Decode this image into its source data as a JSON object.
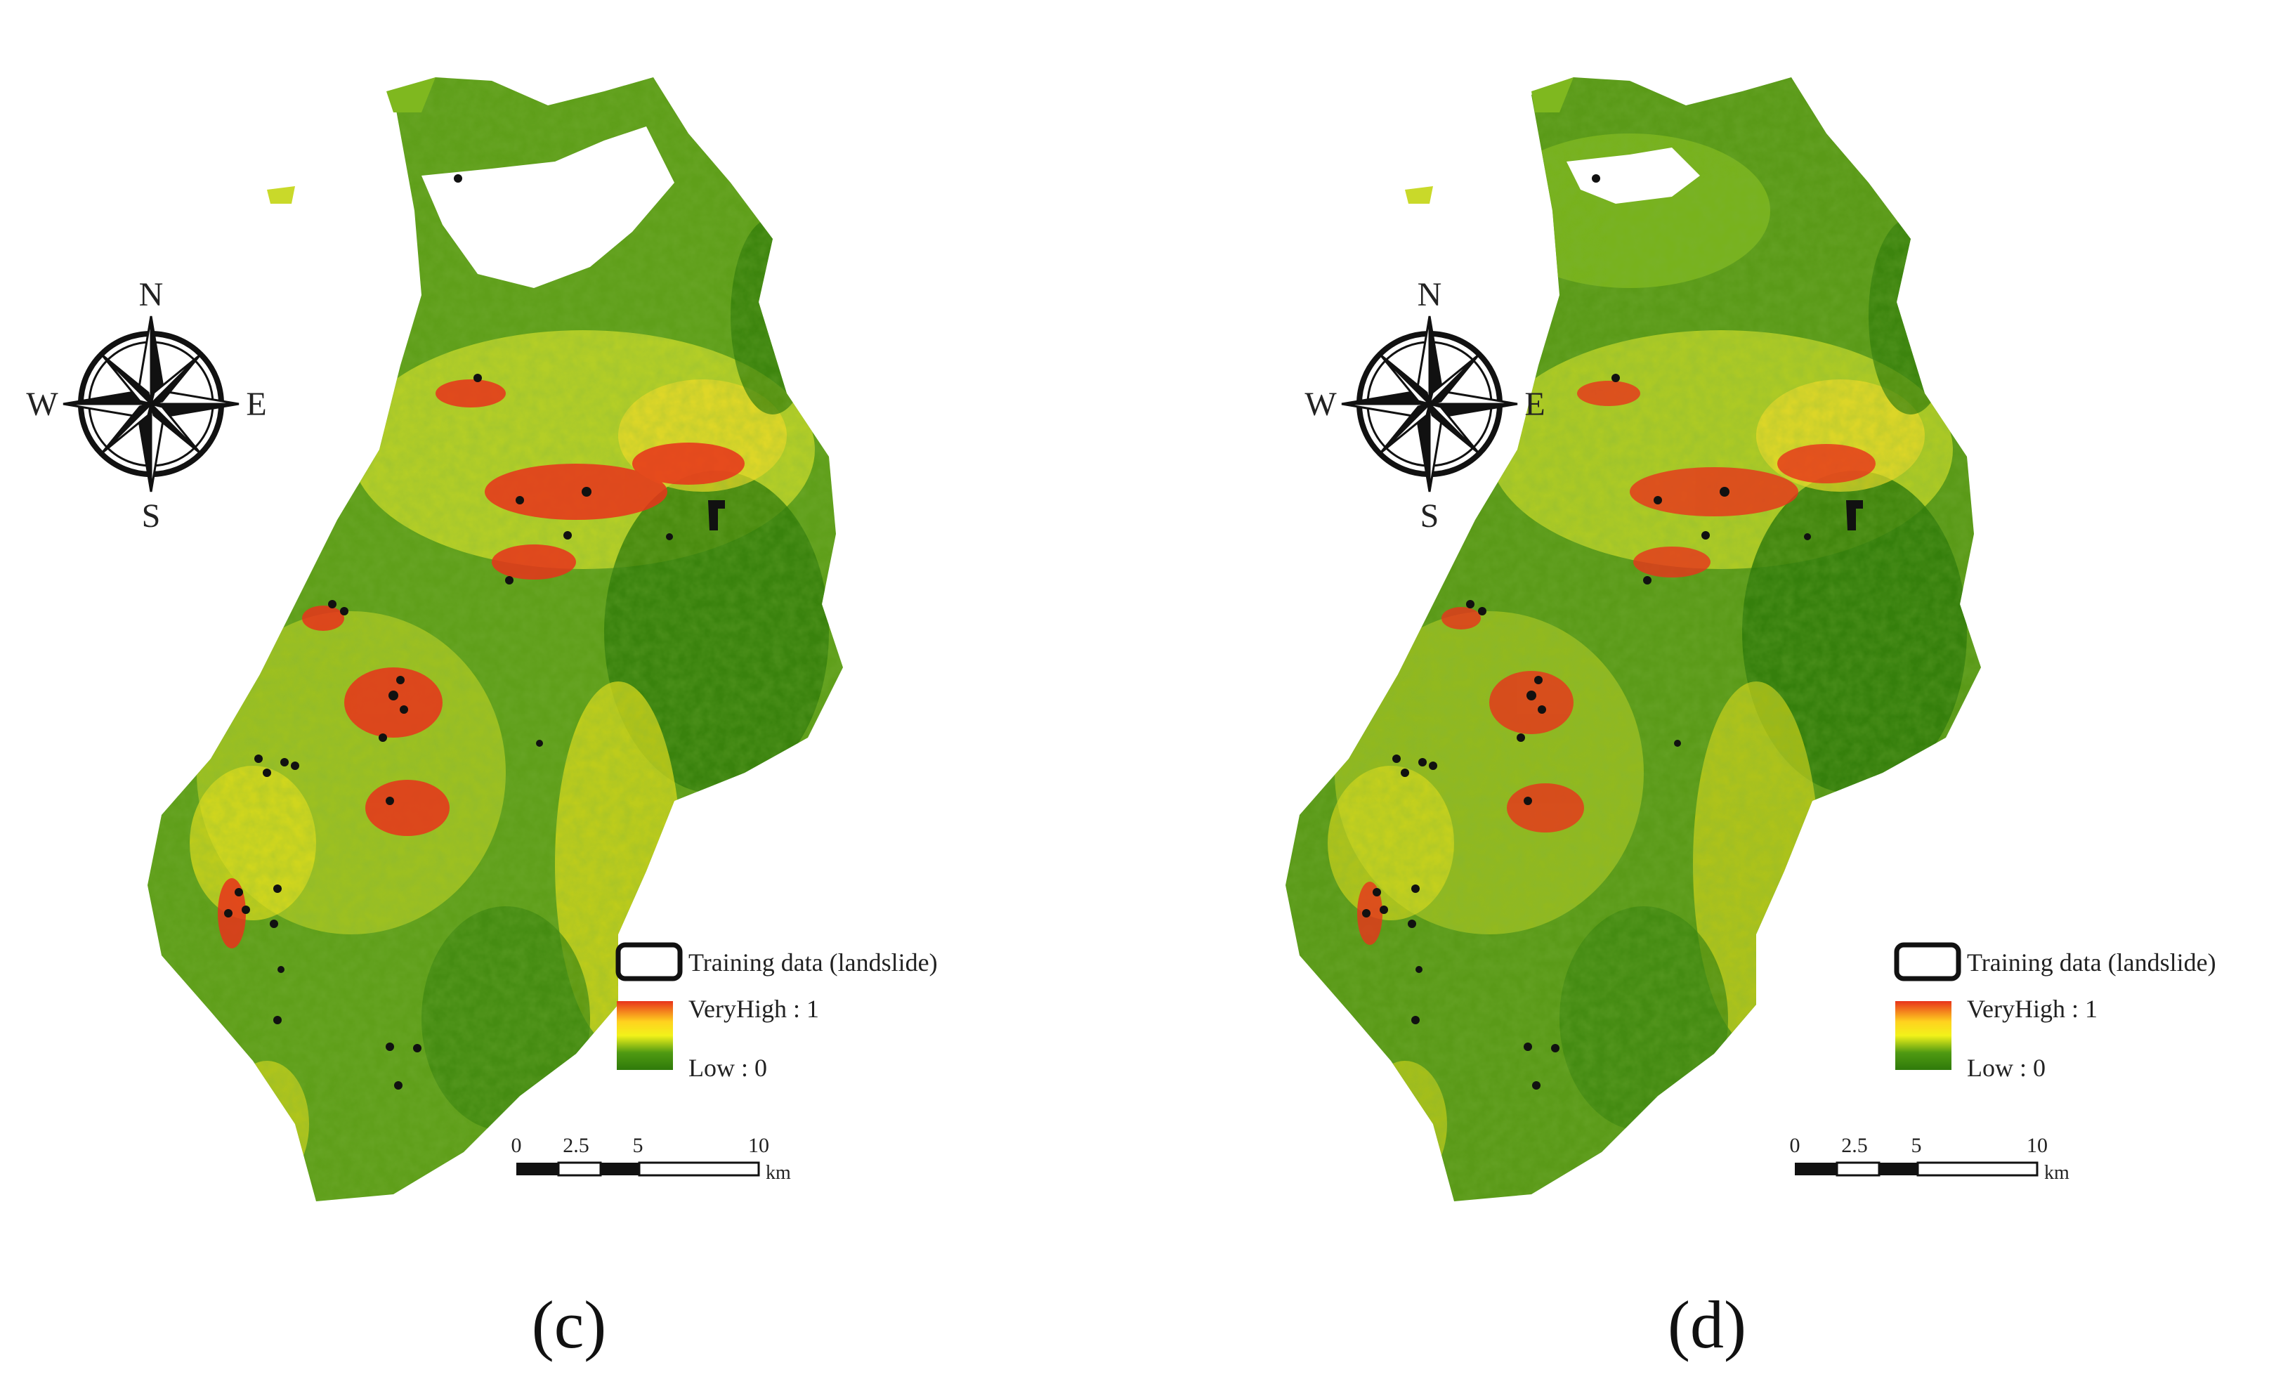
{
  "panels": [
    {
      "id": "c",
      "caption": "(c)",
      "compass": {
        "north": "N",
        "south": "S",
        "east": "E",
        "west": "W"
      },
      "legend": {
        "training_label": "Training data (landslide)",
        "high_label": "VeryHigh : 1",
        "low_label": "Low : 0",
        "ramp_colors": [
          "#e8331b",
          "#ffd21f",
          "#f2f21a",
          "#4f9a12",
          "#2f7a0a"
        ]
      },
      "scalebar": {
        "ticks": [
          "0",
          "2.5",
          "5",
          "10"
        ],
        "unit": "km"
      }
    },
    {
      "id": "d",
      "caption": "(d)",
      "compass": {
        "north": "N",
        "south": "S",
        "east": "E",
        "west": "W"
      },
      "legend": {
        "training_label": "Training data (landslide)",
        "high_label": "VeryHigh : 1",
        "low_label": "Low : 0",
        "ramp_colors": [
          "#e8331b",
          "#ffd21f",
          "#f2f21a",
          "#4f9a12",
          "#2f7a0a"
        ]
      },
      "scalebar": {
        "ticks": [
          "0",
          "2.5",
          "5",
          "10"
        ],
        "unit": "km"
      }
    }
  ]
}
